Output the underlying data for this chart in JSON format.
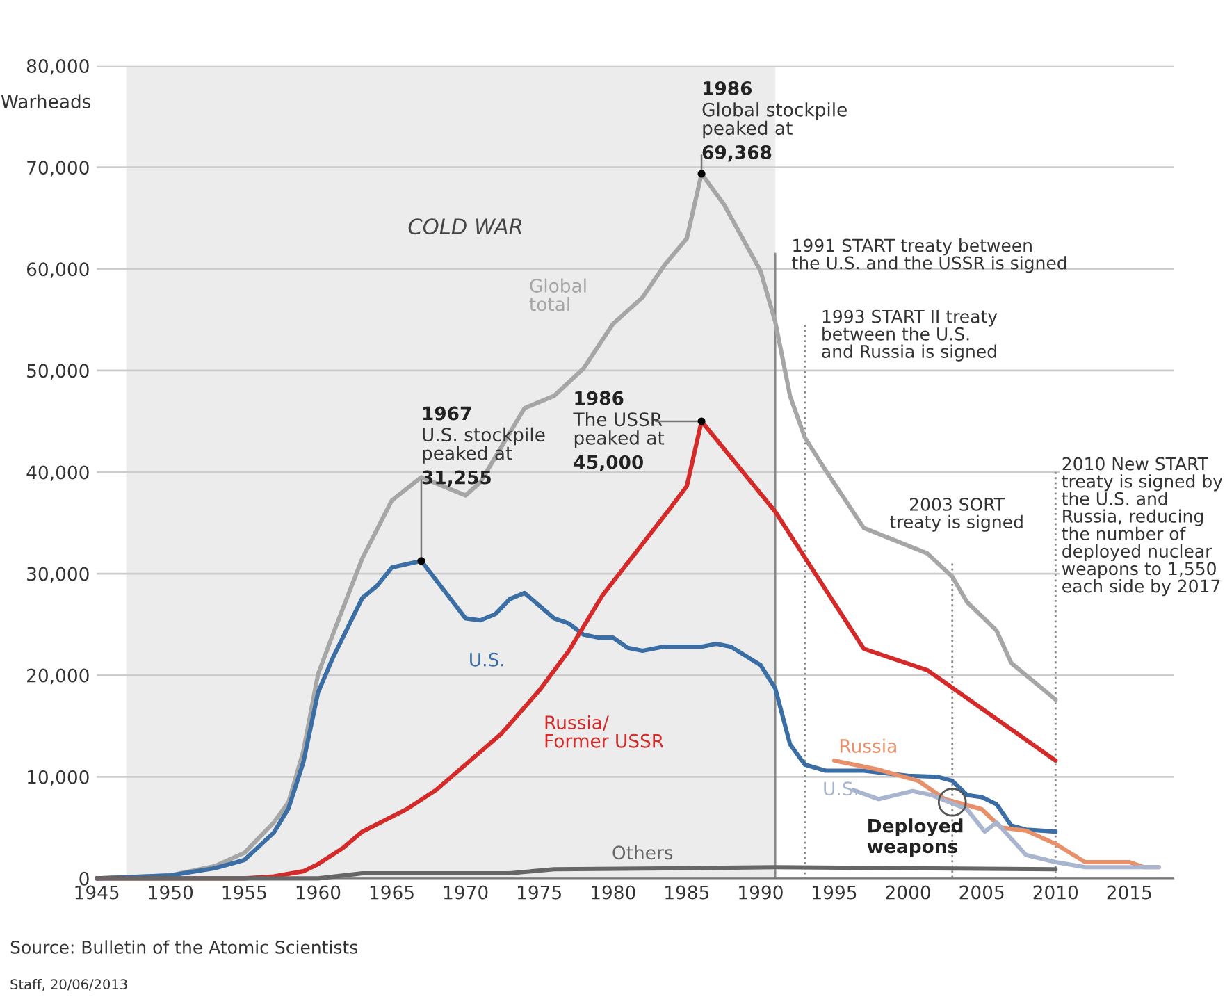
{
  "chart_data": {
    "type": "line",
    "ylabel": "Warheads",
    "xlim": [
      1945,
      2018
    ],
    "xticks": [
      1945,
      1950,
      1955,
      1960,
      1965,
      1970,
      1975,
      1980,
      1985,
      1990,
      1995,
      2000,
      2005,
      2010,
      2015
    ],
    "ylim": [
      0,
      80000
    ],
    "yticks": [
      0,
      {
        "value": 10000,
        "label": "10,000"
      },
      {
        "value": 20000,
        "label": "20,000"
      },
      {
        "value": 30000,
        "label": "30,000"
      },
      {
        "value": 40000,
        "label": "40,000"
      },
      {
        "value": 50000,
        "label": "50,000"
      },
      {
        "value": 60000,
        "label": "60,000"
      },
      {
        "value": 70000,
        "label": "70,000"
      },
      {
        "value": 80000,
        "label": "80,000"
      }
    ],
    "grid": "y",
    "legend": false,
    "series": [
      {
        "name": "Global\ntotal",
        "color": "#a6a6a6",
        "x": [
          1945,
          1950,
          1953,
          1955,
          1956,
          1957,
          1958,
          1959,
          1960,
          1961,
          1963,
          1965,
          1967,
          1970,
          1971,
          1974,
          1976,
          1978,
          1980,
          1982,
          1983.5,
          1985,
          1986,
          1987.5,
          1990,
          1991,
          1992,
          1993,
          1994.4,
          1997,
          2001.3,
          2003,
          2004,
          2006,
          2007,
          2010
        ],
        "values": [
          0,
          300,
          1200,
          2500,
          4000,
          5500,
          7500,
          12500,
          20100,
          24000,
          31500,
          37200,
          39500,
          37700,
          39000,
          46300,
          47500,
          50200,
          54600,
          57200,
          60400,
          63000,
          69368,
          66400,
          59800,
          54800,
          47500,
          43400,
          40200,
          34500,
          32000,
          29700,
          27200,
          24400,
          21200,
          17600
        ]
      },
      {
        "name": "U.S.",
        "color": "#3a6ea5",
        "x": [
          1945,
          1950,
          1953,
          1955,
          1957,
          1958,
          1959,
          1960,
          1961,
          1963,
          1964,
          1965,
          1967,
          1970,
          1971,
          1972,
          1973,
          1974,
          1976,
          1977,
          1978,
          1979,
          1980,
          1981,
          1982,
          1983.4,
          1986,
          1987,
          1988,
          1990,
          1991,
          1992,
          1993,
          1994.4,
          1997,
          2000,
          2002,
          2003,
          2004,
          2005,
          2006,
          2007,
          2008,
          2010
        ],
        "values": [
          0,
          300,
          1000,
          1800,
          4500,
          6900,
          11400,
          18300,
          21700,
          27600,
          28800,
          30600,
          31255,
          25600,
          25400,
          26000,
          27500,
          28100,
          25600,
          25100,
          24000,
          23700,
          23700,
          22700,
          22400,
          22800,
          22800,
          23100,
          22800,
          21000,
          18700,
          13200,
          11200,
          10600,
          10600,
          10100,
          10000,
          9600,
          8200,
          8000,
          7300,
          5200,
          4800,
          4600
        ]
      },
      {
        "name": "Russia/\nFormer USSR",
        "color": "#d42a2a",
        "x": [
          1945,
          1955,
          1957,
          1959,
          1960,
          1961.7,
          1963,
          1966,
          1968,
          1970,
          1972.4,
          1975,
          1977,
          1979.3,
          1983.7,
          1985,
          1986,
          1991,
          1997,
          2001.3,
          2010
        ],
        "values": [
          0,
          0,
          200,
          700,
          1400,
          3000,
          4600,
          6800,
          8700,
          11200,
          14200,
          18500,
          22400,
          27900,
          36100,
          38600,
          45000,
          36100,
          22600,
          20500,
          11600
        ]
      },
      {
        "name": "Others",
        "color": "#666666",
        "x": [
          1945,
          1960,
          1963,
          1970,
          1973,
          1976,
          1985,
          1991,
          2000,
          2010
        ],
        "values": [
          0,
          0,
          500,
          500,
          500,
          900,
          1000,
          1100,
          1000,
          900
        ]
      },
      {
        "name": "Russia",
        "color": "#e8906a",
        "x": [
          1995,
          1998,
          2000.7,
          2002.5,
          2003.8,
          2005,
          2006.3,
          2008,
          2010,
          2012,
          2015,
          2016,
          2017
        ],
        "values": [
          11600,
          10700,
          9600,
          7800,
          7300,
          6800,
          5000,
          4700,
          3400,
          1600,
          1600,
          1100,
          1100
        ]
      },
      {
        "name": "U.S.",
        "color": "#a9b5cf",
        "x": [
          1996.3,
          1998,
          2000.3,
          2001.6,
          2004,
          2005.2,
          2006,
          2008,
          2010,
          2012,
          2017
        ],
        "values": [
          8700,
          7800,
          8600,
          8200,
          6800,
          4600,
          5500,
          2300,
          1600,
          1100,
          1100
        ]
      }
    ],
    "bands": [
      {
        "axis": "x",
        "from": 1947,
        "to": 1991,
        "label": "COLD WAR",
        "color": "#ececec"
      }
    ],
    "ref_lines": [
      {
        "axis": "x",
        "value": 1991,
        "label": "1991 START treaty between\nthe U.S. and the USSR is signed",
        "line_style": "solid",
        "color": "#888888"
      },
      {
        "axis": "x",
        "value": 1993,
        "label": "1993 START II treaty\nbetween the U.S.\nand Russia is signed",
        "line_style": "dotted",
        "color": "#888888"
      },
      {
        "axis": "x",
        "value": 2003,
        "label": "2003 SORT\ntreaty is signed",
        "line_style": "dotted",
        "color": "#888888"
      },
      {
        "axis": "x",
        "value": 2010,
        "label": "2010 New START\ntreaty is signed by\nthe U.S. and\nRussia, reducing\nthe number of\ndeployed nuclear\nweapons to 1,550\neach side by 2017",
        "line_style": "dotted",
        "color": "#888888"
      }
    ],
    "annotations": [
      {
        "text": "1986\nGlobal stockpile\npeaked at\n69,368",
        "x": 1986,
        "y": 69368
      },
      {
        "text": "1967\nU.S. stockpile\npeaked at\n31,255",
        "x": 1967,
        "y": 31255
      },
      {
        "text": "1986\nThe USSR\npeaked at\n45,000",
        "x": 1986,
        "y": 45000
      },
      {
        "text": "Deployed\nweapons",
        "x": 2003,
        "y": 7500
      },
      "Source: Bulletin of the Atomic Scientists",
      "Staff, 20/06/2013"
    ]
  }
}
